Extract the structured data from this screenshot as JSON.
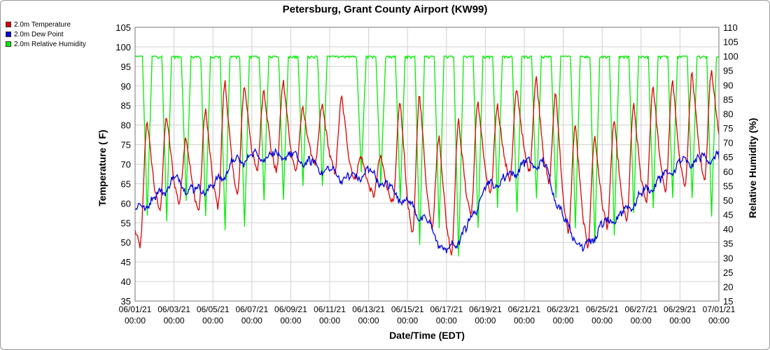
{
  "chart_data": {
    "type": "line",
    "title": "Petersburg, Grant County Airport (KW99)",
    "xlabel": "Date/Time (EDT)",
    "ylabel": "Temperature ( F)",
    "y2label": "Relative Humidity (%)",
    "ylim": [
      35,
      105
    ],
    "y2lim": [
      15,
      110
    ],
    "xlim": [
      "06/01/21 00:00",
      "07/01/21 00:00"
    ],
    "yticks": [
      "35",
      "40",
      "45",
      "50",
      "55",
      "60",
      "65",
      "70",
      "75",
      "80",
      "85",
      "90",
      "95",
      "100",
      "105"
    ],
    "y2ticks": [
      "15",
      "20",
      "25",
      "30",
      "35",
      "40",
      "45",
      "50",
      "55",
      "60",
      "65",
      "70",
      "75",
      "80",
      "85",
      "90",
      "95",
      "100",
      "105",
      "110"
    ],
    "xticks": [
      {
        "date": "06/01/21",
        "time": "00:00"
      },
      {
        "date": "06/03/21",
        "time": "00:00"
      },
      {
        "date": "06/05/21",
        "time": "00:00"
      },
      {
        "date": "06/07/21",
        "time": "00:00"
      },
      {
        "date": "06/09/21",
        "time": "00:00"
      },
      {
        "date": "06/11/21",
        "time": "00:00"
      },
      {
        "date": "06/13/21",
        "time": "00:00"
      },
      {
        "date": "06/15/21",
        "time": "00:00"
      },
      {
        "date": "06/17/21",
        "time": "00:00"
      },
      {
        "date": "06/19/21",
        "time": "00:00"
      },
      {
        "date": "06/21/21",
        "time": "00:00"
      },
      {
        "date": "06/23/21",
        "time": "00:00"
      },
      {
        "date": "06/25/21",
        "time": "00:00"
      },
      {
        "date": "06/27/21",
        "time": "00:00"
      },
      {
        "date": "06/29/21",
        "time": "00:00"
      },
      {
        "date": "07/01/21",
        "time": "00:00"
      }
    ],
    "grid": true,
    "legend_position": "top-left",
    "series": [
      {
        "name": "2.0m Temperature",
        "color": "#dd0000",
        "axis": "left",
        "daily_min": [
          49,
          58,
          60,
          58,
          59,
          62,
          68,
          68,
          68,
          70,
          68,
          66,
          62,
          60,
          52,
          54,
          47,
          57,
          62,
          66,
          68,
          65,
          52,
          49,
          54,
          55,
          60,
          63,
          64,
          66,
          72
        ],
        "daily_max": [
          81,
          82,
          77,
          84,
          91,
          90,
          89,
          91,
          84,
          85,
          87,
          72,
          72,
          86,
          88,
          77,
          81,
          86,
          85,
          89,
          92,
          88,
          80,
          77,
          81,
          85,
          90,
          91,
          93,
          94,
          93
        ]
      },
      {
        "name": "2.0m Dew Point",
        "color": "#0000dd",
        "axis": "left",
        "daily_mean": [
          58,
          61,
          66,
          63,
          64,
          70,
          72,
          72,
          72,
          70,
          68,
          66,
          68,
          64,
          60,
          55,
          47,
          53,
          64,
          66,
          70,
          70,
          56,
          48,
          54,
          57,
          62,
          66,
          70,
          71,
          72
        ]
      },
      {
        "name": "2.0m Relative Humidity",
        "color": "#00ee00",
        "axis": "right",
        "daily_min": [
          45,
          43,
          50,
          44,
          40,
          40,
          50,
          50,
          55,
          55,
          100,
          60,
          55,
          50,
          35,
          40,
          30,
          40,
          48,
          45,
          50,
          50,
          40,
          35,
          38,
          45,
          48,
          50,
          50,
          45,
          55
        ],
        "daily_max": [
          100,
          100,
          100,
          100,
          100,
          100,
          100,
          100,
          100,
          100,
          100,
          100,
          100,
          100,
          100,
          100,
          100,
          100,
          100,
          100,
          100,
          100,
          100,
          100,
          100,
          100,
          100,
          100,
          100,
          100,
          100
        ]
      }
    ]
  }
}
